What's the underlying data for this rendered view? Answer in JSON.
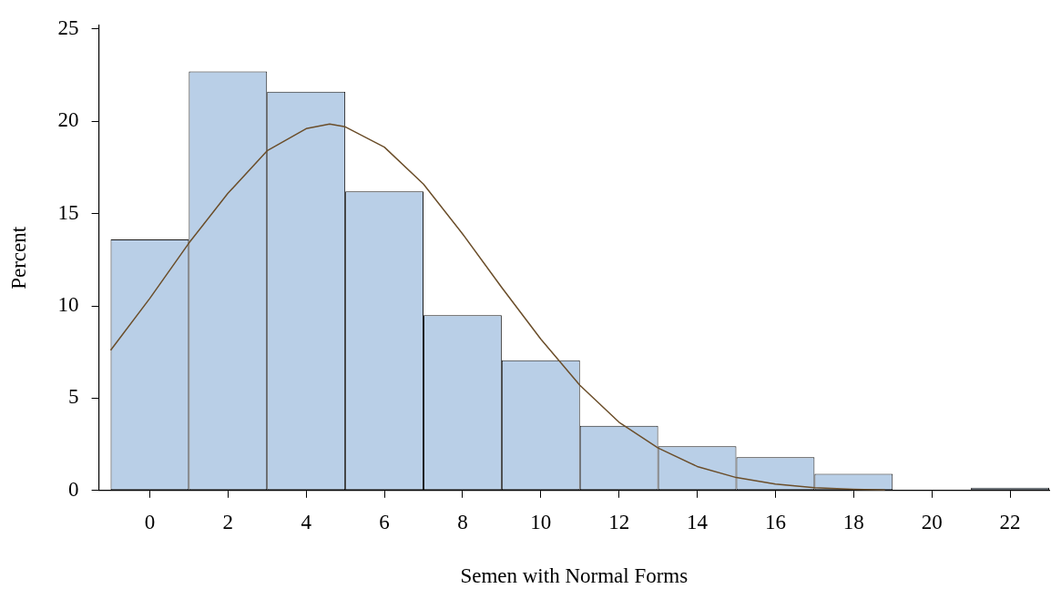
{
  "chart_data": {
    "type": "histogram",
    "xlabel": "Semen with Normal Forms",
    "ylabel": "Percent",
    "bins": [
      -1,
      1,
      3,
      5,
      7,
      9,
      11,
      13,
      15,
      17,
      19,
      21,
      23
    ],
    "series": [
      {
        "type": "histogram",
        "color": "#b9cfe7",
        "values": [
          13.6,
          22.7,
          21.6,
          16.2,
          9.5,
          7.05,
          3.5,
          2.4,
          1.8,
          0.9,
          0,
          0.15
        ]
      },
      {
        "type": "line",
        "color": "#6b4e2a",
        "x": [
          -1,
          0,
          1,
          2,
          3,
          4,
          4.6,
          5,
          6,
          7,
          8,
          9,
          10,
          11,
          12,
          13,
          14,
          15,
          16,
          17,
          18,
          18.8
        ],
        "values": [
          7.6,
          10.4,
          13.4,
          16.1,
          18.4,
          19.6,
          19.85,
          19.7,
          18.6,
          16.6,
          13.9,
          11.0,
          8.2,
          5.7,
          3.7,
          2.3,
          1.3,
          0.7,
          0.35,
          0.15,
          0.07,
          0.03
        ]
      }
    ],
    "xlim": [
      -1.3,
      23
    ],
    "xticks": [
      0,
      2,
      4,
      6,
      8,
      10,
      12,
      14,
      16,
      18,
      20,
      22
    ],
    "ylim": [
      0,
      25.2
    ],
    "yticks": [
      0,
      5,
      10,
      15,
      20,
      25
    ],
    "grid": false,
    "legend": false,
    "marker": "none"
  }
}
